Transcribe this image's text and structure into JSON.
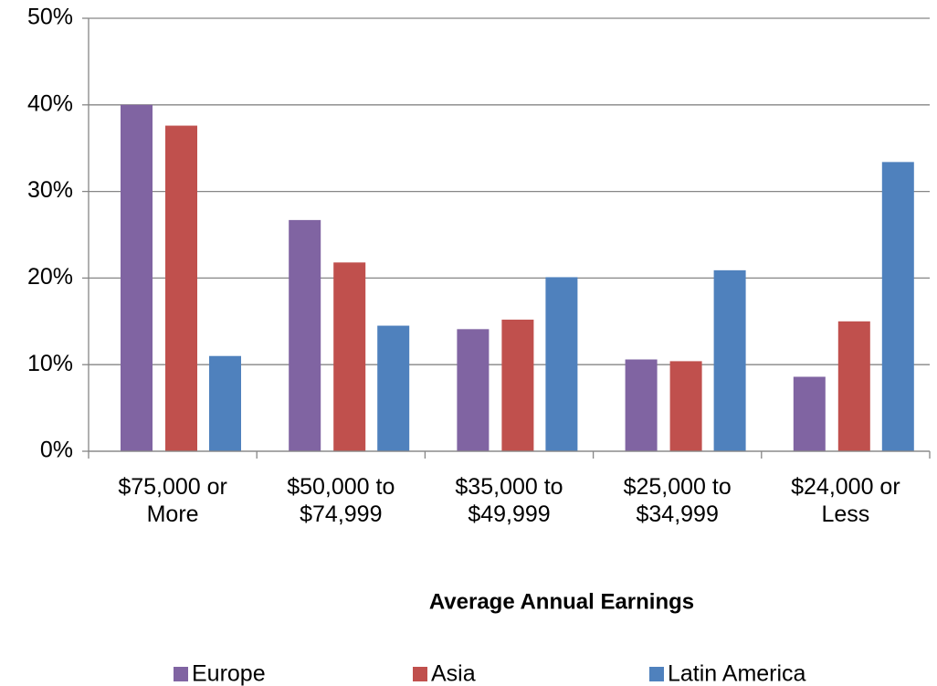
{
  "chart_data": {
    "type": "bar",
    "x_label": "Average Annual Earnings",
    "categories": [
      "$75,000 or More",
      "$50,000 to $74,999",
      "$35,000 to $49,999",
      "$25,000 to $34,999",
      "$24,000 or Less"
    ],
    "series": [
      {
        "name": "Europe",
        "color": "#8064a2",
        "values": [
          40.0,
          26.7,
          14.1,
          10.6,
          8.6
        ]
      },
      {
        "name": "Asia",
        "color": "#c0504d",
        "values": [
          37.6,
          21.8,
          15.2,
          10.4,
          15.0
        ]
      },
      {
        "name": "Latin America",
        "color": "#4f81bd",
        "values": [
          11.0,
          14.5,
          20.1,
          20.9,
          33.4
        ]
      }
    ],
    "ylim": [
      0,
      50
    ],
    "yticks": [
      {
        "value": 0,
        "label": "0%"
      },
      {
        "value": 10,
        "label": "10%"
      },
      {
        "value": 20,
        "label": "20%"
      },
      {
        "value": 30,
        "label": "30%"
      },
      {
        "value": 40,
        "label": "40%"
      },
      {
        "value": 50,
        "label": "50%"
      }
    ],
    "grid": true,
    "legend": "bottom"
  }
}
